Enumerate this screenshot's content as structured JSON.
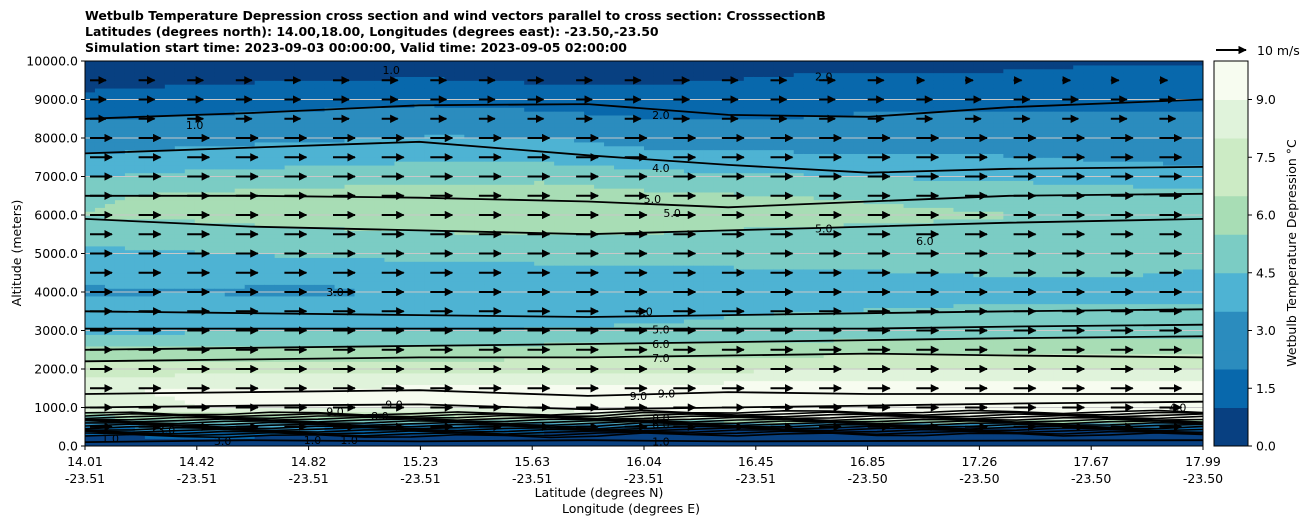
{
  "title_lines": [
    "Wetbulb Temperature Depression cross section and wind vectors parallel to cross section: CrosssectionB",
    "Latitudes (degrees north): 14.00,18.00, Longitudes (degrees east): -23.50,-23.50",
    "Simulation start time: 2023-09-03 00:00:00, Valid time: 2023-09-05 02:00:00"
  ],
  "chart_data": {
    "type": "heatmap",
    "subtype": "filled contour cross-section with contour lines and wind vectors",
    "ylabel": "Altitude (meters)",
    "xlabel_line1": "Latitude (degrees N)",
    "xlabel_line2": "Longitude (degrees E)",
    "ylim": [
      0,
      10000
    ],
    "yticks": [
      "0.0",
      "1000.0",
      "2000.0",
      "3000.0",
      "4000.0",
      "5000.0",
      "6000.0",
      "7000.0",
      "8000.0",
      "9000.0",
      "10000.0"
    ],
    "ytick_values": [
      0,
      1000,
      2000,
      3000,
      4000,
      5000,
      6000,
      7000,
      8000,
      9000,
      10000
    ],
    "xticks_lat": [
      "14.01",
      "14.42",
      "14.82",
      "15.23",
      "15.63",
      "16.04",
      "16.45",
      "16.85",
      "17.26",
      "17.67",
      "17.99"
    ],
    "xticks_lon": [
      "-23.51",
      "-23.51",
      "-23.51",
      "-23.51",
      "-23.51",
      "-23.51",
      "-23.51",
      "-23.50",
      "-23.50",
      "-23.50",
      "-23.50"
    ],
    "xlim_lat": [
      14.01,
      17.99
    ],
    "grid": "horizontal",
    "colorbar": {
      "label": "Wetbulb Temperature Depression °C",
      "range": [
        0,
        10
      ],
      "ticks": [
        "0.0",
        "1.5",
        "3.0",
        "4.5",
        "6.0",
        "7.5",
        "9.0"
      ],
      "tick_values": [
        0,
        1.5,
        3.0,
        4.5,
        6.0,
        7.5,
        9.0
      ],
      "colormap": "GnBu",
      "colors": [
        "#084081",
        "#0868ac",
        "#2b8cbe",
        "#4eb3d3",
        "#7bccc4",
        "#a8ddb5",
        "#ccebc5",
        "#e0f3db",
        "#f7fcf0"
      ]
    },
    "quiver_key": {
      "label": "10 m/s",
      "speed": 10
    },
    "wind": {
      "direction": "positive along section (left to right)",
      "typical_speed_ms": 8
    },
    "profile_columns": {
      "heights": [
        0,
        250,
        500,
        750,
        1000,
        1500,
        2000,
        2500,
        3000,
        3500,
        4000,
        4500,
        5000,
        5500,
        6000,
        6500,
        7000,
        7500,
        8000,
        8500,
        9000,
        9500,
        10000
      ],
      "columns": [
        {
          "lat": 14.01,
          "values": [
            0.5,
            1.0,
            2.0,
            5.0,
            8.6,
            8.8,
            7.2,
            5.8,
            4.2,
            4.0,
            3.2,
            3.6,
            4.2,
            4.8,
            5.6,
            5.4,
            4.4,
            3.4,
            2.8,
            2.2,
            1.4,
            0.8,
            0.4
          ]
        },
        {
          "lat": 14.42,
          "values": [
            0.8,
            1.2,
            3.2,
            7.0,
            8.9,
            9.0,
            7.3,
            5.9,
            4.3,
            4.0,
            3.3,
            3.6,
            4.4,
            5.0,
            5.8,
            5.8,
            4.8,
            3.8,
            3.0,
            2.4,
            1.6,
            1.0,
            0.5
          ]
        },
        {
          "lat": 14.82,
          "values": [
            0.6,
            1.0,
            2.6,
            6.0,
            8.9,
            9.0,
            7.3,
            5.8,
            4.3,
            3.9,
            3.1,
            3.6,
            4.6,
            5.2,
            6.2,
            6.0,
            5.0,
            4.0,
            3.2,
            2.6,
            1.8,
            1.1,
            0.6
          ]
        },
        {
          "lat": 15.23,
          "values": [
            0.6,
            0.9,
            2.0,
            6.5,
            9.1,
            9.1,
            7.3,
            5.9,
            4.4,
            4.0,
            3.6,
            3.9,
            4.8,
            5.4,
            6.4,
            6.2,
            5.2,
            4.2,
            3.4,
            2.8,
            2.0,
            1.2,
            0.6
          ]
        },
        {
          "lat": 15.63,
          "values": [
            0.6,
            0.8,
            1.6,
            7.2,
            9.2,
            9.3,
            7.4,
            6.0,
            4.5,
            4.1,
            3.7,
            4.0,
            4.9,
            5.6,
            6.6,
            6.4,
            5.2,
            4.2,
            3.4,
            2.6,
            1.8,
            1.0,
            0.5
          ]
        },
        {
          "lat": 16.04,
          "values": [
            0.4,
            0.6,
            1.2,
            8.2,
            9.3,
            9.4,
            7.5,
            6.1,
            4.6,
            4.2,
            3.8,
            4.1,
            5.0,
            5.5,
            6.2,
            5.8,
            4.8,
            3.8,
            2.8,
            2.2,
            1.6,
            1.0,
            0.6
          ]
        },
        {
          "lat": 16.45,
          "values": [
            0.4,
            0.6,
            1.0,
            8.8,
            9.4,
            9.5,
            7.6,
            6.2,
            4.8,
            4.4,
            4.0,
            4.3,
            4.9,
            5.3,
            6.0,
            5.6,
            4.6,
            3.6,
            2.8,
            2.2,
            1.8,
            1.2,
            0.8
          ]
        },
        {
          "lat": 16.85,
          "values": [
            0.4,
            0.6,
            1.0,
            9.2,
            9.5,
            9.6,
            7.7,
            6.3,
            4.9,
            4.5,
            4.1,
            4.4,
            4.8,
            5.2,
            5.8,
            5.4,
            4.4,
            3.4,
            2.8,
            2.4,
            2.0,
            1.4,
            0.8
          ]
        },
        {
          "lat": 17.26,
          "values": [
            0.4,
            0.6,
            1.0,
            9.3,
            9.6,
            9.7,
            7.8,
            6.4,
            5.0,
            4.6,
            4.2,
            4.5,
            4.8,
            5.2,
            5.6,
            5.2,
            4.2,
            3.4,
            2.8,
            2.4,
            2.0,
            1.4,
            0.8
          ]
        },
        {
          "lat": 17.67,
          "values": [
            0.4,
            0.6,
            1.2,
            9.3,
            9.6,
            9.6,
            7.8,
            6.4,
            5.0,
            4.6,
            4.2,
            4.5,
            4.7,
            5.1,
            5.4,
            5.0,
            4.0,
            3.2,
            2.8,
            2.4,
            2.0,
            1.6,
            1.0
          ]
        },
        {
          "lat": 17.99,
          "values": [
            0.4,
            0.6,
            1.4,
            9.2,
            9.5,
            9.5,
            7.7,
            6.3,
            4.9,
            4.6,
            4.2,
            4.4,
            4.6,
            5.0,
            5.2,
            4.8,
            3.8,
            3.0,
            2.6,
            2.4,
            2.0,
            1.6,
            1.0
          ]
        }
      ]
    },
    "contour_lines": [
      {
        "level": 2.0,
        "label": "2.0",
        "points": [
          [
            14.01,
            8500
          ],
          [
            14.6,
            8650
          ],
          [
            15.2,
            8850
          ],
          [
            15.8,
            8880
          ],
          [
            16.3,
            8600
          ],
          [
            16.8,
            8550
          ],
          [
            17.3,
            8800
          ],
          [
            17.99,
            9000
          ]
        ]
      },
      {
        "level": 4.0,
        "label": "4.0",
        "points": [
          [
            14.01,
            7600
          ],
          [
            14.6,
            7750
          ],
          [
            15.2,
            7900
          ],
          [
            15.8,
            7550
          ],
          [
            16.3,
            7300
          ],
          [
            16.8,
            7100
          ],
          [
            17.3,
            7200
          ],
          [
            17.99,
            7250
          ]
        ]
      },
      {
        "level": 5.0,
        "label": "5.0",
        "points": [
          [
            14.01,
            6500
          ],
          [
            14.6,
            6500
          ],
          [
            15.2,
            6450
          ],
          [
            15.8,
            6350
          ],
          [
            16.3,
            6200
          ],
          [
            16.8,
            6350
          ],
          [
            17.3,
            6500
          ],
          [
            17.99,
            6550
          ]
        ]
      },
      {
        "level": 5.0,
        "label": "",
        "points": [
          [
            14.01,
            5900
          ],
          [
            14.6,
            5700
          ],
          [
            15.2,
            5600
          ],
          [
            15.8,
            5500
          ],
          [
            16.3,
            5600
          ],
          [
            16.8,
            5700
          ],
          [
            17.3,
            5800
          ],
          [
            17.99,
            5900
          ]
        ]
      },
      {
        "level": 4.0,
        "label": "4.0",
        "points": [
          [
            14.01,
            3500
          ],
          [
            14.6,
            3450
          ],
          [
            15.2,
            3400
          ],
          [
            15.8,
            3350
          ],
          [
            16.3,
            3400
          ],
          [
            16.8,
            3450
          ],
          [
            17.3,
            3500
          ],
          [
            17.99,
            3550
          ]
        ]
      },
      {
        "level": 5.0,
        "label": "5.0",
        "points": [
          [
            14.01,
            3050
          ],
          [
            14.6,
            3050
          ],
          [
            15.2,
            3050
          ],
          [
            15.8,
            3050
          ],
          [
            16.3,
            3050
          ],
          [
            16.8,
            3050
          ],
          [
            17.3,
            3100
          ],
          [
            17.99,
            3150
          ]
        ]
      },
      {
        "level": 6.0,
        "label": "6.0",
        "points": [
          [
            14.01,
            2500
          ],
          [
            14.6,
            2550
          ],
          [
            15.2,
            2600
          ],
          [
            15.8,
            2650
          ],
          [
            16.3,
            2700
          ],
          [
            16.8,
            2750
          ],
          [
            17.3,
            2800
          ],
          [
            17.99,
            2850
          ]
        ]
      },
      {
        "level": 7.0,
        "label": "7.0",
        "points": [
          [
            14.01,
            2200
          ],
          [
            14.6,
            2250
          ],
          [
            15.2,
            2300
          ],
          [
            15.8,
            2300
          ],
          [
            16.3,
            2350
          ],
          [
            16.8,
            2400
          ],
          [
            17.3,
            2350
          ],
          [
            17.99,
            2300
          ]
        ]
      },
      {
        "level": 9.0,
        "label": "9.0",
        "points": [
          [
            14.01,
            1350
          ],
          [
            14.6,
            1400
          ],
          [
            15.2,
            1450
          ],
          [
            15.8,
            1300
          ],
          [
            16.3,
            1400
          ],
          [
            16.8,
            1350
          ],
          [
            17.3,
            1350
          ],
          [
            17.99,
            1350
          ]
        ]
      },
      {
        "level": 9.0,
        "label": "9.0",
        "points": [
          [
            14.01,
            1000
          ],
          [
            14.6,
            1050
          ],
          [
            15.2,
            1080
          ],
          [
            15.8,
            950
          ],
          [
            16.3,
            1000
          ],
          [
            16.8,
            1050
          ],
          [
            17.3,
            1100
          ],
          [
            17.99,
            1150
          ]
        ]
      },
      {
        "level": 1.0,
        "label": "1.0",
        "points": [
          [
            14.01,
            100
          ],
          [
            14.6,
            150
          ],
          [
            15.2,
            120
          ],
          [
            15.8,
            150
          ],
          [
            16.3,
            120
          ],
          [
            16.8,
            130
          ],
          [
            17.3,
            140
          ],
          [
            17.99,
            150
          ]
        ]
      }
    ],
    "contour_label_text": [
      {
        "text": "1.0",
        "lat": 15.1,
        "alt": 9770
      },
      {
        "text": "2.0",
        "lat": 16.64,
        "alt": 9600
      },
      {
        "text": "1.0",
        "lat": 14.4,
        "alt": 8340
      },
      {
        "text": "2.0",
        "lat": 16.06,
        "alt": 8600
      },
      {
        "text": "4.0",
        "lat": 16.06,
        "alt": 7220
      },
      {
        "text": "5.0",
        "lat": 16.03,
        "alt": 6420
      },
      {
        "text": "5.0",
        "lat": 16.1,
        "alt": 6050
      },
      {
        "text": "5.0",
        "lat": 16.64,
        "alt": 5650
      },
      {
        "text": "6.0",
        "lat": 17.0,
        "alt": 5320
      },
      {
        "text": "3.0",
        "lat": 14.9,
        "alt": 4000
      },
      {
        "text": "4.0",
        "lat": 16.0,
        "alt": 3500
      },
      {
        "text": "5.0",
        "lat": 16.06,
        "alt": 3030
      },
      {
        "text": "6.0",
        "lat": 16.06,
        "alt": 2650
      },
      {
        "text": "7.0",
        "lat": 16.06,
        "alt": 2280
      },
      {
        "text": "9.0",
        "lat": 15.98,
        "alt": 1300
      },
      {
        "text": "9.0",
        "lat": 16.08,
        "alt": 1360
      },
      {
        "text": "9.0",
        "lat": 14.9,
        "alt": 900
      },
      {
        "text": "9.0",
        "lat": 15.11,
        "alt": 1080
      },
      {
        "text": "8.0",
        "lat": 15.06,
        "alt": 780
      },
      {
        "text": "8.0",
        "lat": 16.06,
        "alt": 730
      },
      {
        "text": "6.0",
        "lat": 16.06,
        "alt": 560
      },
      {
        "text": "4.0",
        "lat": 17.9,
        "alt": 1000
      },
      {
        "text": "1.0",
        "lat": 14.1,
        "alt": 200
      },
      {
        "text": "3.0",
        "lat": 14.3,
        "alt": 420
      },
      {
        "text": "3.0",
        "lat": 14.5,
        "alt": 130
      },
      {
        "text": "1.0",
        "lat": 14.82,
        "alt": 160
      },
      {
        "text": "1.0",
        "lat": 14.95,
        "alt": 150
      },
      {
        "text": "1.0",
        "lat": 16.06,
        "alt": 120
      }
    ]
  }
}
